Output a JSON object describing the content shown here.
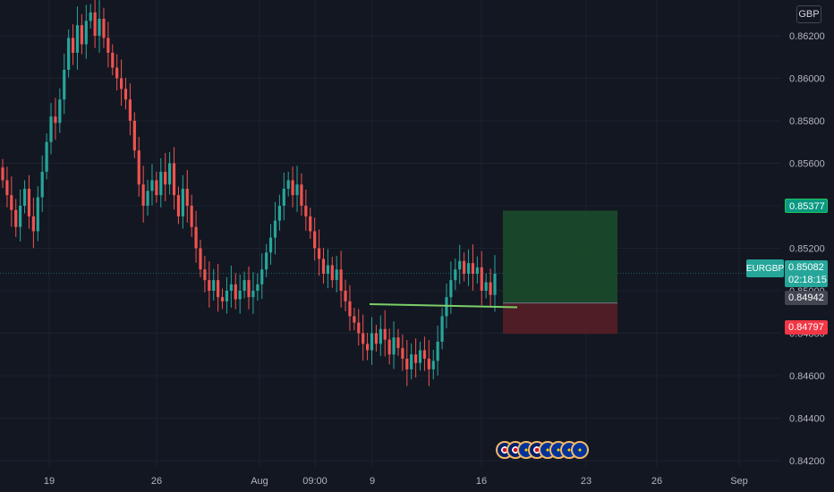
{
  "currency": "GBP",
  "symbol": "EURGBP",
  "last_price": "0.85082",
  "countdown": "02:18:15",
  "entry_price": "0.84942",
  "take_profit_price": "0.85377",
  "stop_loss_price": "0.84797",
  "colors": {
    "background": "#131722",
    "bull": "#26a69a",
    "bear": "#ef5350",
    "profit_zone": "#1b4d2c",
    "loss_zone": "#5a1f27",
    "support_line": "#7ccf6a",
    "tp_tag": "#089981",
    "sl_tag": "#f23645"
  },
  "time_axis": [
    "19",
    "26",
    "Aug",
    "09:00",
    "9",
    "16",
    "23",
    "26",
    "Sep"
  ],
  "price_axis": [
    "0.86200",
    "0.86000",
    "0.85800",
    "0.85600",
    "0.85400",
    "0.85200",
    "0.85000",
    "0.84800",
    "0.84600",
    "0.84400",
    "0.84200"
  ],
  "event_icons": [
    "uk-flag-icon",
    "uk-flag-icon",
    "eu-flag-icon",
    "uk-flag-icon",
    "eu-flag-icon",
    "eu-flag-icon",
    "eu-flag-icon",
    "eu-flag-icon"
  ],
  "chart_data": {
    "type": "candlestick",
    "ylim": [
      0.8415,
      0.863
    ],
    "y_ticks": [
      0.862,
      0.86,
      0.858,
      0.856,
      0.854,
      0.852,
      0.85,
      0.848,
      0.846,
      0.844,
      0.842
    ],
    "closes": [
      0.8552,
      0.8545,
      0.8538,
      0.853,
      0.854,
      0.8548,
      0.8535,
      0.8528,
      0.8544,
      0.8556,
      0.857,
      0.8582,
      0.8579,
      0.859,
      0.8604,
      0.8619,
      0.8612,
      0.8625,
      0.8616,
      0.8627,
      0.8631,
      0.862,
      0.8628,
      0.8619,
      0.8612,
      0.8605,
      0.86,
      0.8595,
      0.859,
      0.858,
      0.8566,
      0.855,
      0.854,
      0.8547,
      0.8552,
      0.8545,
      0.8556,
      0.855,
      0.856,
      0.8545,
      0.8535,
      0.8548,
      0.854,
      0.853,
      0.852,
      0.851,
      0.8505,
      0.85,
      0.8505,
      0.8497,
      0.8495,
      0.85,
      0.8503,
      0.8496,
      0.85,
      0.8505,
      0.8497,
      0.85,
      0.8503,
      0.851,
      0.8518,
      0.8525,
      0.8533,
      0.854,
      0.8548,
      0.8552,
      0.8545,
      0.855,
      0.854,
      0.8535,
      0.8528,
      0.852,
      0.8515,
      0.8508,
      0.8512,
      0.8505,
      0.851,
      0.85,
      0.8495,
      0.8488,
      0.8485,
      0.848,
      0.8475,
      0.8472,
      0.848,
      0.8475,
      0.8482,
      0.8477,
      0.847,
      0.8478,
      0.8473,
      0.8468,
      0.8463,
      0.847,
      0.8466,
      0.8472,
      0.8468,
      0.8463,
      0.8467,
      0.8476,
      0.8488,
      0.8497,
      0.8505,
      0.851,
      0.8514,
      0.8508,
      0.8513,
      0.8508,
      0.8511,
      0.85,
      0.8504,
      0.8498,
      0.8508
    ],
    "tp_zone": [
      0.85377,
      0.84942
    ],
    "sl_zone": [
      0.84942,
      0.84797
    ],
    "support_line": [
      0.84937,
      0.84922
    ]
  }
}
